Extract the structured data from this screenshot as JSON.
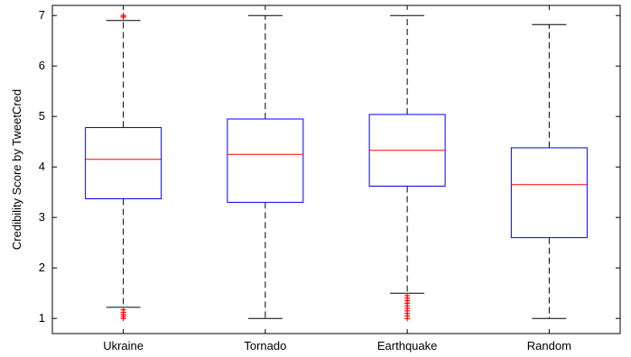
{
  "chart_data": {
    "type": "box",
    "title": "",
    "xlabel": "",
    "ylabel": "Credibility Score by TweetCred",
    "ylim": [
      0.7,
      7.2
    ],
    "yticks": [
      1,
      2,
      3,
      4,
      5,
      6,
      7
    ],
    "grid": false,
    "categories": [
      "Ukraine",
      "Tornado",
      "Earthquake",
      "Random"
    ],
    "boxes": [
      {
        "category": "Ukraine",
        "whisker_low": 1.22,
        "q1": 3.37,
        "median": 4.15,
        "q3": 4.78,
        "whisker_high": 6.9,
        "outliers": [
          7.0,
          6.97,
          1.17,
          1.12,
          1.08,
          1.04,
          1.0
        ]
      },
      {
        "category": "Tornado",
        "whisker_low": 1.0,
        "q1": 3.3,
        "median": 4.25,
        "q3": 4.95,
        "whisker_high": 7.0,
        "outliers": []
      },
      {
        "category": "Earthquake",
        "whisker_low": 1.5,
        "q1": 3.62,
        "median": 4.33,
        "q3": 5.04,
        "whisker_high": 7.0,
        "outliers": [
          1.45,
          1.4,
          1.35,
          1.3,
          1.25,
          1.2,
          1.15,
          1.1,
          1.05,
          1.0
        ]
      },
      {
        "category": "Random",
        "whisker_low": 1.0,
        "q1": 2.6,
        "median": 3.65,
        "q3": 4.38,
        "whisker_high": 6.82,
        "outliers": []
      }
    ],
    "colors": {
      "box": "#0000ff",
      "median": "#ff0000",
      "whisker": "#000000",
      "outlier": "#ff0000"
    }
  }
}
